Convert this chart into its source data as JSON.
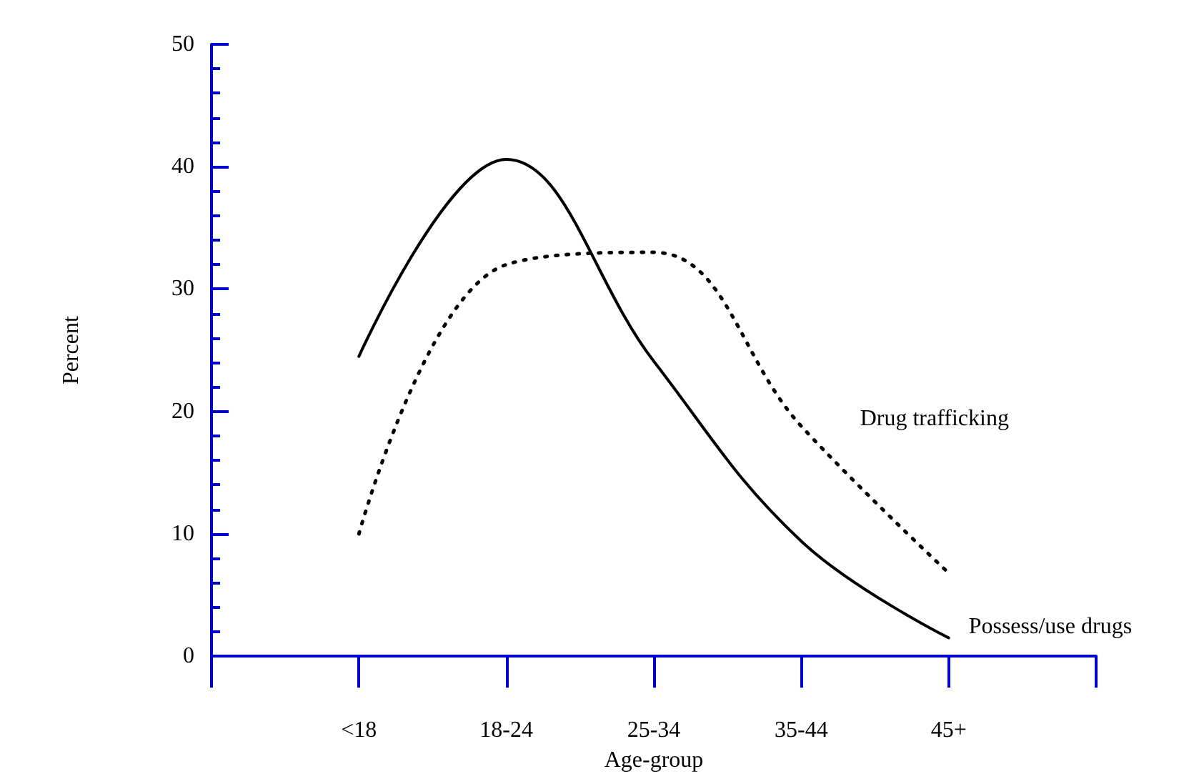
{
  "chart_data": {
    "type": "line",
    "xlabel": "Age-group",
    "ylabel": "Percent",
    "categories": [
      "<18",
      "18-24",
      "25-34",
      "35-44",
      "45+"
    ],
    "series": [
      {
        "name": "Possess/use drugs",
        "color": "#000000",
        "line_style": "solid",
        "values": [
          24.5,
          40.6,
          24.1,
          9.4,
          1.5
        ]
      },
      {
        "name": "Drug trafficking",
        "color": "#000000",
        "line_style": "dotted",
        "values": [
          10,
          32,
          33,
          18.8,
          6.8
        ]
      }
    ],
    "ylim": [
      0,
      50
    ],
    "yticks": [
      0,
      10,
      20,
      30,
      40,
      50
    ],
    "grid": false,
    "legend": false,
    "marker": "none"
  }
}
